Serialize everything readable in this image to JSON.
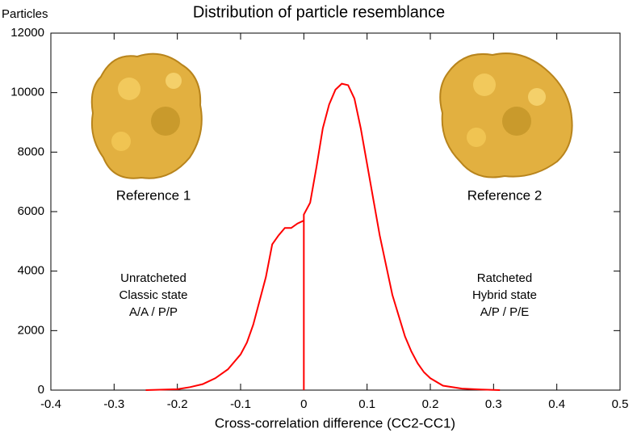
{
  "chart_data": {
    "type": "line",
    "title": "Distribution of particle resemblance",
    "y_label": "Particles",
    "x_label": "Cross-correlation difference (CC2-CC1)",
    "annotations": [
      {
        "text": "Reference 1"
      },
      {
        "text": "Reference 2"
      },
      {
        "text": "Unratcheted"
      },
      {
        "text": "Classic state"
      },
      {
        "text": "A/A / P/P"
      },
      {
        "text": "Ratcheted"
      },
      {
        "text": "Hybrid state"
      },
      {
        "text": "A/P / P/E"
      }
    ],
    "series": [
      {
        "color": "#ff0000",
        "x": [
          -0.25,
          -0.2,
          -0.18,
          -0.16,
          -0.14,
          -0.12,
          -0.1,
          -0.09,
          -0.08,
          -0.07,
          -0.06,
          -0.05,
          -0.04,
          -0.03,
          -0.02,
          -0.01,
          0,
          0,
          0,
          0.01,
          0.02,
          0.03,
          0.04,
          0.05,
          0.06,
          0.07,
          0.08,
          0.09,
          0.1,
          0.11,
          0.12,
          0.13,
          0.14,
          0.15,
          0.16,
          0.17,
          0.18,
          0.19,
          0.2,
          0.22,
          0.25,
          0.28,
          0.31
        ],
        "values": [
          0,
          30,
          100,
          200,
          400,
          700,
          1200,
          1600,
          2200,
          3000,
          3800,
          4900,
          5200,
          5450,
          5450,
          5600,
          5700,
          0,
          5900,
          6300,
          7500,
          8800,
          9600,
          10100,
          10300,
          10250,
          9800,
          8800,
          7600,
          6400,
          5200,
          4200,
          3200,
          2500,
          1800,
          1300,
          900,
          600,
          400,
          150,
          50,
          20,
          0
        ]
      }
    ],
    "xlim": [
      -0.4,
      0.5
    ],
    "xticks": [
      -0.4,
      -0.3,
      -0.2,
      -0.1,
      0,
      0.1,
      0.2,
      0.3,
      0.4,
      0.5
    ],
    "ylim": [
      0,
      12000
    ],
    "yticks": [
      0,
      2000,
      4000,
      6000,
      8000,
      10000,
      12000
    ]
  }
}
